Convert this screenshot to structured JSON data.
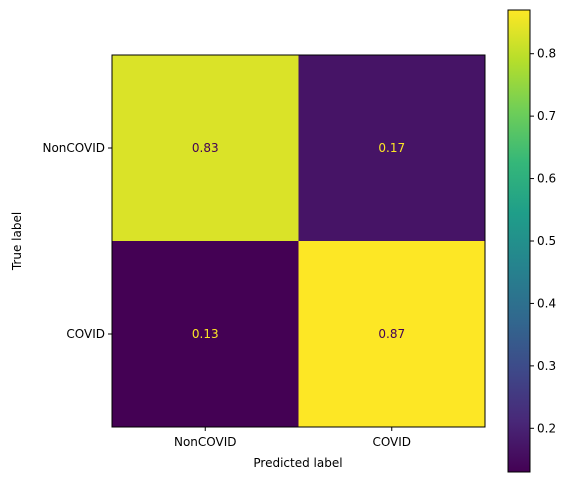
{
  "chart_data": {
    "type": "heatmap",
    "title": "",
    "xlabel": "Predicted label",
    "ylabel": "True label",
    "x_categories": [
      "NonCOVID",
      "COVID"
    ],
    "y_categories": [
      "NonCOVID",
      "COVID"
    ],
    "values": [
      [
        0.83,
        0.17
      ],
      [
        0.13,
        0.87
      ]
    ],
    "value_labels": [
      [
        "0.83",
        "0.17"
      ],
      [
        "0.13",
        "0.87"
      ]
    ],
    "colormap": "viridis",
    "colorbar": {
      "range": [
        0.13,
        0.87
      ],
      "ticks": [
        0.2,
        0.3,
        0.4,
        0.5,
        0.6,
        0.7,
        0.8
      ],
      "tick_labels": [
        "0.2",
        "0.3",
        "0.4",
        "0.5",
        "0.6",
        "0.7",
        "0.8"
      ]
    },
    "colors": {
      "low_value_text": "#fde725",
      "high_value_text": "#440154"
    }
  }
}
